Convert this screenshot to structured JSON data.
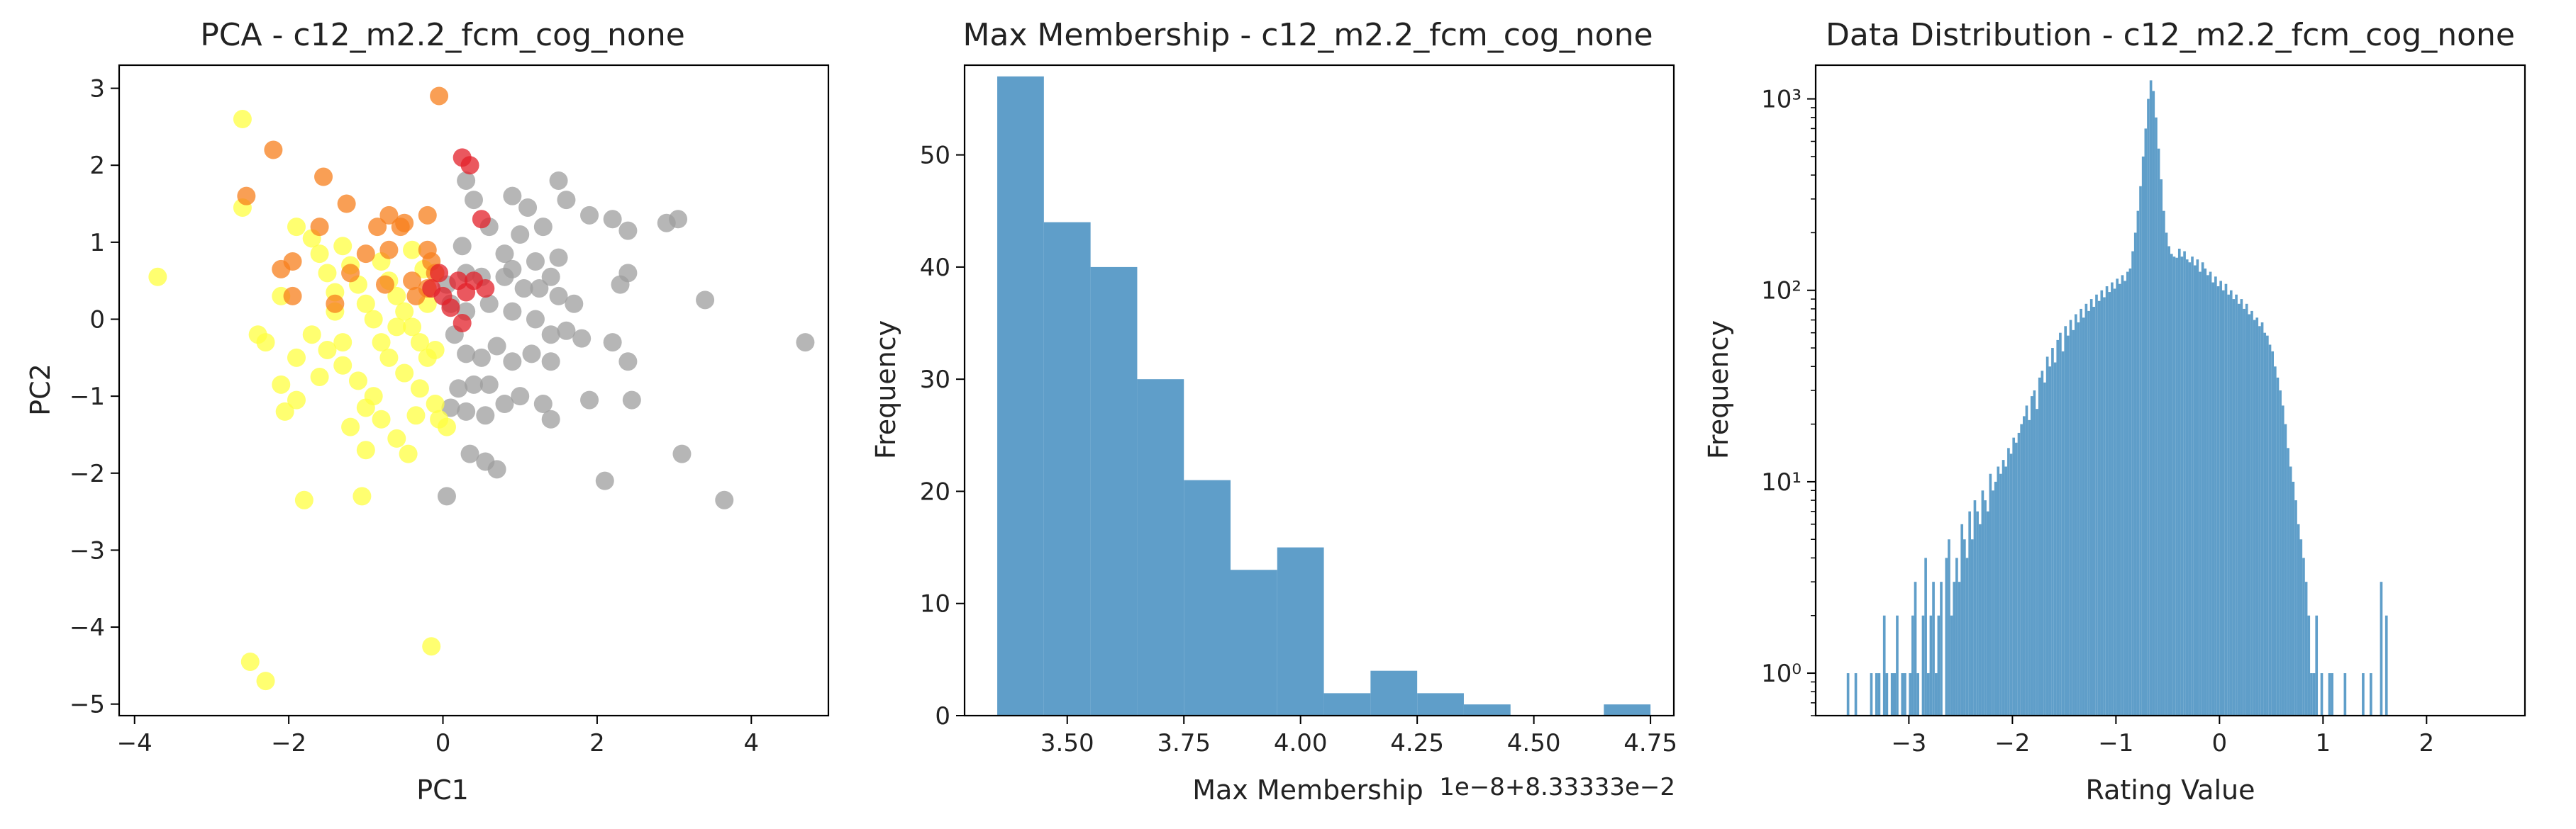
{
  "chart_data": [
    {
      "type": "scatter",
      "title": "PCA - c12_m2.2_fcm_cog_none",
      "xlabel": "PC1",
      "ylabel": "PC2",
      "xlim": [
        -4.2,
        5.0
      ],
      "ylim": [
        -5.15,
        3.3
      ],
      "xticks": [
        -4,
        -2,
        0,
        2,
        4
      ],
      "yticks": [
        -5,
        -4,
        -3,
        -2,
        -1,
        0,
        1,
        2,
        3
      ],
      "tick_labels_x": [
        "−4",
        "−2",
        "0",
        "2",
        "4"
      ],
      "tick_labels_y": [
        "−5",
        "−4",
        "−3",
        "−2",
        "−1",
        "0",
        "1",
        "2",
        "3"
      ],
      "grid": false,
      "colors": {
        "gray": "#9e9e9e",
        "yellow": "#ffff40",
        "orange": "#f77f1c",
        "red": "#e3202a"
      },
      "series": [
        {
          "color": "gray",
          "points": [
            [
              0.3,
              1.8
            ],
            [
              0.4,
              1.55
            ],
            [
              0.6,
              1.2
            ],
            [
              0.9,
              1.6
            ],
            [
              1.1,
              1.45
            ],
            [
              1.5,
              1.8
            ],
            [
              1.6,
              1.55
            ],
            [
              1.3,
              1.2
            ],
            [
              1.0,
              1.1
            ],
            [
              1.9,
              1.35
            ],
            [
              2.2,
              1.3
            ],
            [
              2.4,
              1.15
            ],
            [
              2.9,
              1.25
            ],
            [
              3.05,
              1.3
            ],
            [
              0.8,
              0.85
            ],
            [
              0.9,
              0.65
            ],
            [
              1.2,
              0.75
            ],
            [
              1.5,
              0.8
            ],
            [
              1.4,
              0.55
            ],
            [
              2.4,
              0.6
            ],
            [
              2.3,
              0.45
            ],
            [
              0.3,
              0.6
            ],
            [
              0.5,
              0.55
            ],
            [
              0.8,
              0.55
            ],
            [
              1.05,
              0.4
            ],
            [
              1.25,
              0.4
            ],
            [
              1.5,
              0.3
            ],
            [
              1.7,
              0.2
            ],
            [
              3.4,
              0.25
            ],
            [
              0.1,
              0.2
            ],
            [
              0.3,
              0.1
            ],
            [
              0.6,
              0.2
            ],
            [
              0.9,
              0.1
            ],
            [
              1.2,
              0.0
            ],
            [
              1.4,
              -0.2
            ],
            [
              1.6,
              -0.15
            ],
            [
              1.8,
              -0.25
            ],
            [
              2.2,
              -0.3
            ],
            [
              2.4,
              -0.55
            ],
            [
              0.3,
              -0.45
            ],
            [
              0.5,
              -0.5
            ],
            [
              0.7,
              -0.35
            ],
            [
              0.9,
              -0.55
            ],
            [
              1.15,
              -0.45
            ],
            [
              1.4,
              -0.55
            ],
            [
              0.2,
              -0.9
            ],
            [
              0.4,
              -0.85
            ],
            [
              0.6,
              -0.85
            ],
            [
              0.8,
              -1.1
            ],
            [
              1.0,
              -1.0
            ],
            [
              1.3,
              -1.1
            ],
            [
              1.4,
              -1.3
            ],
            [
              1.9,
              -1.05
            ],
            [
              2.45,
              -1.05
            ],
            [
              0.1,
              -1.15
            ],
            [
              0.3,
              -1.2
            ],
            [
              0.55,
              -1.25
            ],
            [
              0.35,
              -1.75
            ],
            [
              0.55,
              -1.85
            ],
            [
              0.7,
              -1.95
            ],
            [
              0.05,
              -2.3
            ],
            [
              2.1,
              -2.1
            ],
            [
              3.1,
              -1.75
            ],
            [
              3.65,
              -2.35
            ],
            [
              4.7,
              -0.3
            ],
            [
              0.05,
              0.45
            ],
            [
              0.15,
              -0.2
            ],
            [
              0.25,
              0.95
            ]
          ]
        },
        {
          "color": "yellow",
          "points": [
            [
              -3.7,
              0.55
            ],
            [
              -2.6,
              2.6
            ],
            [
              -2.6,
              1.45
            ],
            [
              -2.4,
              -0.2
            ],
            [
              -2.3,
              -0.3
            ],
            [
              -2.1,
              0.3
            ],
            [
              -2.1,
              -0.85
            ],
            [
              -2.05,
              -1.2
            ],
            [
              -1.9,
              -1.05
            ],
            [
              -1.8,
              -2.35
            ],
            [
              -1.9,
              1.2
            ],
            [
              -1.7,
              1.05
            ],
            [
              -1.6,
              0.85
            ],
            [
              -1.5,
              0.6
            ],
            [
              -1.4,
              0.35
            ],
            [
              -1.3,
              0.95
            ],
            [
              -1.2,
              0.7
            ],
            [
              -1.1,
              0.45
            ],
            [
              -1.0,
              0.2
            ],
            [
              -0.9,
              0.0
            ],
            [
              -0.8,
              0.75
            ],
            [
              -0.7,
              0.5
            ],
            [
              -0.6,
              0.3
            ],
            [
              -0.5,
              0.1
            ],
            [
              -0.4,
              -0.1
            ],
            [
              -0.3,
              -0.3
            ],
            [
              -0.2,
              -0.5
            ],
            [
              -0.1,
              -0.4
            ],
            [
              -1.9,
              -0.5
            ],
            [
              -1.7,
              -0.2
            ],
            [
              -1.5,
              -0.4
            ],
            [
              -1.3,
              -0.6
            ],
            [
              -1.1,
              -0.8
            ],
            [
              -0.9,
              -1.0
            ],
            [
              -0.7,
              -0.5
            ],
            [
              -0.5,
              -0.7
            ],
            [
              -0.3,
              -0.9
            ],
            [
              -1.2,
              -1.4
            ],
            [
              -1.0,
              -1.15
            ],
            [
              -0.8,
              -1.3
            ],
            [
              -0.6,
              -1.55
            ],
            [
              -0.45,
              -1.75
            ],
            [
              -1.0,
              -1.7
            ],
            [
              -1.05,
              -2.3
            ],
            [
              -0.05,
              -1.3
            ],
            [
              0.05,
              -1.4
            ],
            [
              -0.1,
              -1.1
            ],
            [
              -2.5,
              -4.45
            ],
            [
              -2.3,
              -4.7
            ],
            [
              -0.15,
              -4.25
            ],
            [
              -0.4,
              0.9
            ],
            [
              -0.25,
              0.65
            ],
            [
              -1.6,
              -0.75
            ],
            [
              -1.3,
              -0.3
            ],
            [
              -0.6,
              -0.1
            ],
            [
              -0.35,
              -1.25
            ],
            [
              -0.2,
              0.2
            ],
            [
              -0.8,
              -0.3
            ],
            [
              -1.4,
              0.1
            ]
          ]
        },
        {
          "color": "orange",
          "points": [
            [
              -0.05,
              2.9
            ],
            [
              -2.2,
              2.2
            ],
            [
              -2.55,
              1.6
            ],
            [
              -1.55,
              1.85
            ],
            [
              -1.25,
              1.5
            ],
            [
              -0.7,
              1.35
            ],
            [
              -0.5,
              1.25
            ],
            [
              -0.2,
              1.35
            ],
            [
              -1.6,
              1.2
            ],
            [
              -0.85,
              1.2
            ],
            [
              -0.55,
              1.2
            ],
            [
              -2.1,
              0.65
            ],
            [
              -1.95,
              0.75
            ],
            [
              -1.2,
              0.6
            ],
            [
              -1.0,
              0.85
            ],
            [
              -0.7,
              0.9
            ],
            [
              -0.2,
              0.9
            ],
            [
              -0.15,
              0.75
            ],
            [
              -0.1,
              0.6
            ],
            [
              -1.4,
              0.2
            ],
            [
              -0.75,
              0.45
            ],
            [
              -1.95,
              0.3
            ],
            [
              -0.35,
              0.3
            ],
            [
              -0.2,
              0.4
            ],
            [
              -0.4,
              0.5
            ]
          ]
        },
        {
          "color": "red",
          "points": [
            [
              0.25,
              2.1
            ],
            [
              0.35,
              2.0
            ],
            [
              0.5,
              1.3
            ],
            [
              -0.05,
              0.6
            ],
            [
              0.2,
              0.5
            ],
            [
              0.4,
              0.5
            ],
            [
              -0.15,
              0.4
            ],
            [
              0.0,
              0.3
            ],
            [
              0.3,
              0.35
            ],
            [
              0.55,
              0.4
            ],
            [
              0.1,
              0.15
            ],
            [
              0.25,
              -0.05
            ]
          ]
        }
      ]
    },
    {
      "type": "bar",
      "title": "Max Membership - c12_m2.2_fcm_cog_none",
      "xlabel": "Max Membership",
      "ylabel": "Frequency",
      "offset_text": "1e−8+8.33333e−2",
      "xlim": [
        3.28,
        4.8
      ],
      "ylim": [
        0,
        58
      ],
      "xticks": [
        3.5,
        3.75,
        4.0,
        4.25,
        4.5,
        4.75
      ],
      "tick_labels_x": [
        "3.50",
        "3.75",
        "4.00",
        "4.25",
        "4.50",
        "4.75"
      ],
      "yticks": [
        0,
        10,
        20,
        30,
        40,
        50
      ],
      "tick_labels_y": [
        "0",
        "10",
        "20",
        "30",
        "40",
        "50"
      ],
      "color": "#5f9ec9",
      "bins": [
        {
          "x0": 3.35,
          "x1": 3.45,
          "value": 57
        },
        {
          "x0": 3.45,
          "x1": 3.55,
          "value": 44
        },
        {
          "x0": 3.55,
          "x1": 3.65,
          "value": 40
        },
        {
          "x0": 3.65,
          "x1": 3.75,
          "value": 30
        },
        {
          "x0": 3.75,
          "x1": 3.85,
          "value": 21
        },
        {
          "x0": 3.85,
          "x1": 3.95,
          "value": 13
        },
        {
          "x0": 3.95,
          "x1": 4.05,
          "value": 15
        },
        {
          "x0": 4.05,
          "x1": 4.15,
          "value": 2
        },
        {
          "x0": 4.15,
          "x1": 4.25,
          "value": 4
        },
        {
          "x0": 4.25,
          "x1": 4.35,
          "value": 2
        },
        {
          "x0": 4.35,
          "x1": 4.45,
          "value": 1
        },
        {
          "x0": 4.45,
          "x1": 4.55,
          "value": 0
        },
        {
          "x0": 4.55,
          "x1": 4.65,
          "value": 0
        },
        {
          "x0": 4.65,
          "x1": 4.75,
          "value": 1
        }
      ]
    },
    {
      "type": "bar",
      "title": "Data Distribution - c12_m2.2_fcm_cog_none",
      "xlabel": "Rating Value",
      "ylabel": "Frequency",
      "yscale": "log",
      "xlim": [
        -3.9,
        2.95
      ],
      "ylim": [
        0.6,
        1500
      ],
      "xticks": [
        -3,
        -2,
        -1,
        0,
        1,
        2
      ],
      "tick_labels_x": [
        "−3",
        "−2",
        "−1",
        "0",
        "1",
        "2"
      ],
      "yticks": [
        1,
        10,
        100,
        1000
      ],
      "tick_labels_y": [
        "10⁰",
        "10¹",
        "10²",
        "10³"
      ],
      "color": "#5f9ec9",
      "bin_width": 0.025,
      "x_start": -3.6,
      "heights": [
        1,
        0,
        0,
        1,
        0,
        0,
        0,
        0,
        0,
        1,
        0,
        1,
        1,
        0,
        2,
        1,
        0,
        1,
        1,
        2,
        0,
        1,
        1,
        0,
        1,
        2,
        3,
        1,
        0,
        2,
        4,
        1,
        2,
        3,
        1,
        2,
        3,
        0,
        4,
        5,
        2,
        3,
        4,
        3,
        6,
        5,
        4,
        7,
        5,
        8,
        7,
        6,
        9,
        8,
        7,
        11,
        9,
        10,
        12,
        11,
        13,
        12,
        15,
        14,
        17,
        16,
        18,
        20,
        22,
        25,
        21,
        28,
        30,
        24,
        35,
        38,
        33,
        45,
        40,
        50,
        42,
        55,
        60,
        48,
        65,
        58,
        70,
        62,
        75,
        68,
        80,
        72,
        85,
        78,
        90,
        82,
        95,
        88,
        100,
        92,
        105,
        98,
        110,
        102,
        115,
        108,
        120,
        112,
        125,
        130,
        160,
        200,
        260,
        350,
        500,
        700,
        1000,
        1250,
        1100,
        800,
        550,
        380,
        260,
        200,
        170,
        155,
        150,
        148,
        165,
        150,
        160,
        145,
        140,
        150,
        135,
        145,
        125,
        140,
        130,
        120,
        125,
        110,
        118,
        105,
        112,
        100,
        108,
        95,
        100,
        90,
        95,
        85,
        90,
        80,
        85,
        75,
        78,
        70,
        72,
        65,
        68,
        60,
        58,
        52,
        48,
        40,
        35,
        30,
        25,
        20,
        15,
        12,
        10,
        8,
        6,
        5,
        4,
        3,
        2,
        1,
        1,
        2,
        0,
        1,
        0,
        0,
        1,
        1,
        0,
        0,
        0,
        0,
        1,
        0,
        0,
        0,
        0,
        0,
        0,
        1,
        0,
        0,
        1,
        0,
        0,
        0,
        3,
        0,
        2
      ]
    }
  ]
}
